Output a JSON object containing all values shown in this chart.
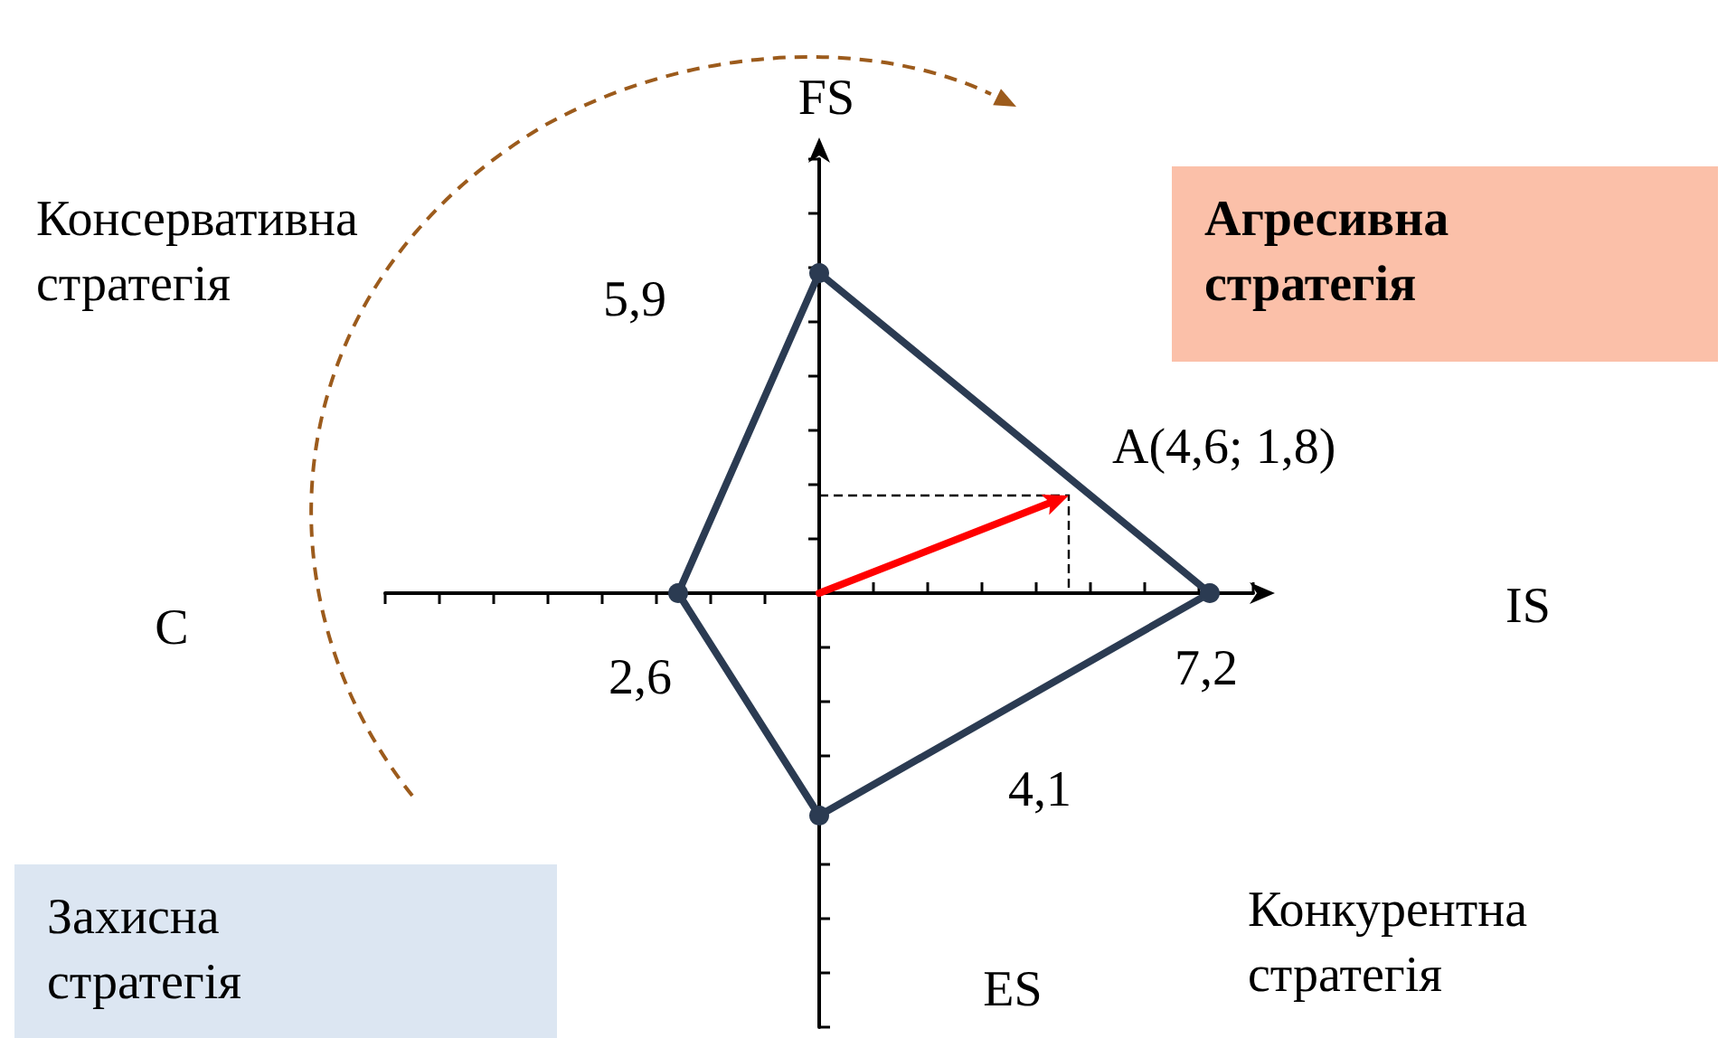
{
  "chart_data": {
    "type": "other",
    "categories": [
      "FS",
      "IS",
      "ES",
      "C"
    ],
    "values": [
      5.9,
      7.2,
      4.1,
      2.6
    ],
    "color": "#2b3b52",
    "value_labels": [
      "5,9",
      "7,2",
      "4,1",
      "2,6"
    ],
    "annotations": [
      "A(4,6; 1,8)",
      "Консервативна стратегія",
      "Агресивна стратегія",
      "Захисна стратегія",
      "Конкурентна стратегія"
    ]
  }
}
